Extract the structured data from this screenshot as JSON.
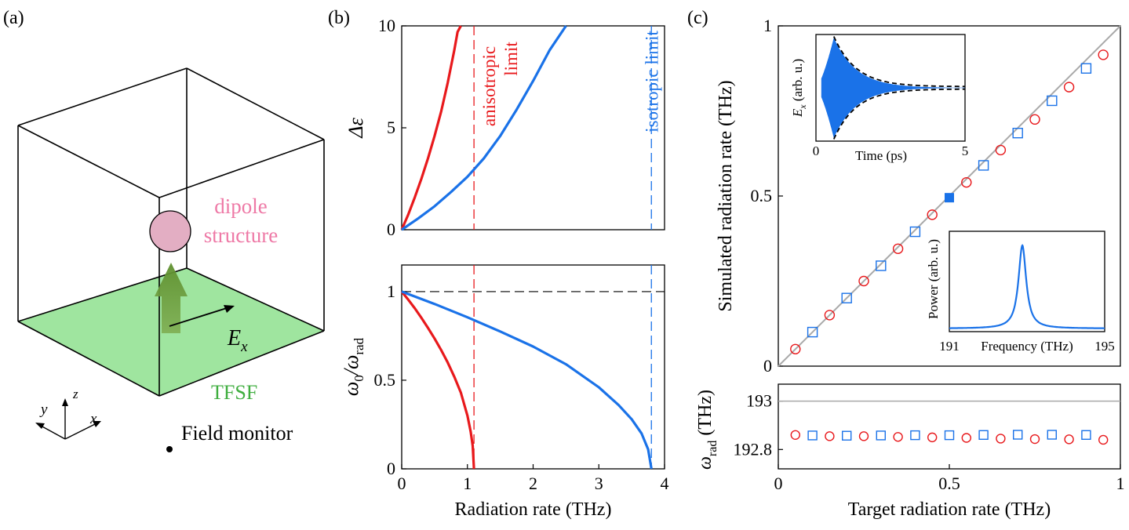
{
  "panel_labels": {
    "a": "(a)",
    "b": "(b)",
    "c": "(c)"
  },
  "colors": {
    "red": "#e8191c",
    "blue": "#1a72e8",
    "green": "#8fe08f",
    "arrow_green": "#6e9f3c",
    "pink": "#e3aec3",
    "pink_text": "#ee79a6",
    "tfsf_text": "#3fae3f",
    "gray": "#a9a9a9"
  },
  "schematic": {
    "dipole_label_1": "dipole",
    "dipole_label_2": "structure",
    "field_label": "E",
    "field_sub": "x",
    "tfsf_label": "TFSF",
    "monitor_label": "Field monitor",
    "axes": {
      "x": "x",
      "y": "y",
      "z": "z"
    }
  },
  "chart_data": [
    {
      "id": "b-top",
      "type": "line",
      "xlim": [
        0,
        4
      ],
      "ylim": [
        0,
        10
      ],
      "yticks": [
        0,
        5,
        10
      ],
      "ylabel": "Δε",
      "series": [
        {
          "color": "red",
          "x": [
            0,
            0.1,
            0.2,
            0.3,
            0.4,
            0.5,
            0.6,
            0.7,
            0.8,
            0.85,
            0.9
          ],
          "y": [
            0,
            0.75,
            1.6,
            2.5,
            3.5,
            4.6,
            5.8,
            7.2,
            8.8,
            9.7,
            10.0
          ]
        },
        {
          "color": "blue",
          "x": [
            0,
            0.25,
            0.5,
            0.75,
            1.0,
            1.25,
            1.5,
            1.75,
            2.0,
            2.25,
            2.5
          ],
          "y": [
            0,
            0.55,
            1.15,
            1.85,
            2.6,
            3.5,
            4.6,
            5.9,
            7.3,
            8.8,
            10.0
          ]
        }
      ],
      "vlines": [
        {
          "x": 1.1,
          "color": "red",
          "label_1": "anisotropic",
          "label_2": "limit"
        },
        {
          "x": 3.8,
          "color": "blue",
          "label_1": "isotropic limit"
        }
      ]
    },
    {
      "id": "b-bottom",
      "type": "line",
      "xlim": [
        0,
        4
      ],
      "ylim": [
        0,
        1.15
      ],
      "xticks": [
        0,
        1,
        2,
        3,
        4
      ],
      "yticks": [
        0,
        0.5,
        1
      ],
      "ylabel": "ω0/ωrad",
      "ylabel_main": "ω",
      "ylabel_sub0": "0",
      "ylabel_sep": "/ω",
      "ylabel_sub1": "rad",
      "xlabel": "Radiation rate (THz)",
      "hline": 1,
      "series": [
        {
          "color": "red",
          "x": [
            0,
            0.1,
            0.2,
            0.3,
            0.4,
            0.5,
            0.6,
            0.7,
            0.8,
            0.9,
            1.0,
            1.05,
            1.08,
            1.1
          ],
          "y": [
            1,
            0.954,
            0.905,
            0.852,
            0.795,
            0.735,
            0.67,
            0.6,
            0.52,
            0.43,
            0.3,
            0.21,
            0.13,
            0
          ]
        },
        {
          "color": "blue",
          "x": [
            0,
            0.5,
            1.0,
            1.5,
            2.0,
            2.5,
            3.0,
            3.3,
            3.5,
            3.65,
            3.75,
            3.8
          ],
          "y": [
            1,
            0.93,
            0.855,
            0.775,
            0.69,
            0.59,
            0.46,
            0.36,
            0.28,
            0.2,
            0.11,
            0
          ]
        }
      ],
      "vlines": [
        {
          "x": 1.1,
          "color": "red"
        },
        {
          "x": 3.8,
          "color": "blue"
        }
      ]
    },
    {
      "id": "c-main",
      "type": "scatter",
      "xlim": [
        0,
        1
      ],
      "ylim": [
        0,
        1
      ],
      "yticks": [
        0,
        0.5,
        1
      ],
      "ylabel": "Simulated radiation rate (THz)",
      "diagonal": true,
      "series": [
        {
          "color": "red",
          "marker": "circle",
          "x": [
            0.05,
            0.15,
            0.25,
            0.35,
            0.45,
            0.55,
            0.65,
            0.75,
            0.85,
            0.95
          ],
          "y": [
            0.05,
            0.15,
            0.25,
            0.345,
            0.445,
            0.54,
            0.635,
            0.725,
            0.82,
            0.915
          ]
        },
        {
          "color": "blue",
          "marker": "square",
          "x": [
            0.1,
            0.2,
            0.3,
            0.4,
            0.6,
            0.7,
            0.8,
            0.9
          ],
          "y": [
            0.1,
            0.2,
            0.295,
            0.395,
            0.59,
            0.685,
            0.78,
            0.875
          ]
        },
        {
          "color": "blue",
          "marker": "square-filled",
          "x": [
            0.5
          ],
          "y": [
            0.495
          ]
        }
      ]
    },
    {
      "id": "c-inset-time",
      "type": "line",
      "xlim": [
        0,
        5
      ],
      "xticks": [
        0,
        5
      ],
      "xlabel": "Time (ps)",
      "ylabel_main": "E",
      "ylabel_sub": "x",
      "ylabel_rest": "(arb. u.)",
      "decay": {
        "peak_t": 0.6,
        "tau": 0.75
      }
    },
    {
      "id": "c-inset-freq",
      "type": "line",
      "xlim": [
        191,
        195
      ],
      "xticks": [
        191,
        195
      ],
      "xlabel": "Frequency (THz)",
      "ylabel": "Power (arb. u.)",
      "peak": {
        "center": 192.88,
        "width": 0.12
      }
    },
    {
      "id": "c-bottom",
      "type": "scatter",
      "xlim": [
        0,
        1
      ],
      "ylim": [
        192.72,
        193.07
      ],
      "xticks": [
        0,
        0.5,
        1
      ],
      "ytick_labels": [
        "193",
        "192.8"
      ],
      "yticks": [
        193,
        192.8
      ],
      "xlabel": "Target radiation rate (THz)",
      "ylabel_main": "ω",
      "ylabel_sub": "rad",
      "ylabel_rest": "(THz)",
      "hline": 193,
      "series": [
        {
          "color": "red",
          "marker": "circle",
          "x": [
            0.05,
            0.15,
            0.25,
            0.35,
            0.45,
            0.55,
            0.65,
            0.75,
            0.85,
            0.95
          ],
          "y": [
            192.86,
            192.855,
            192.855,
            192.852,
            192.85,
            192.848,
            192.845,
            192.843,
            192.842,
            192.84
          ]
        },
        {
          "color": "blue",
          "marker": "square",
          "x": [
            0.1,
            0.2,
            0.3,
            0.4,
            0.5,
            0.6,
            0.7,
            0.8,
            0.9
          ],
          "y": [
            192.858,
            192.857,
            192.858,
            192.859,
            192.859,
            192.86,
            192.861,
            192.861,
            192.86
          ]
        }
      ]
    }
  ]
}
